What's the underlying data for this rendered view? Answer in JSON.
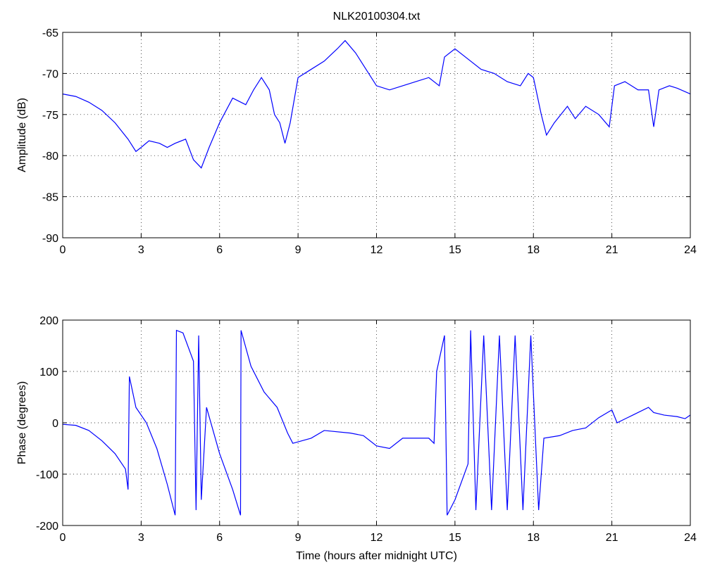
{
  "chart_data": [
    {
      "type": "line",
      "title": "NLK20100304.txt",
      "ylabel": "Amplitude (dB)",
      "color": "#0000ff",
      "grid": true,
      "xlim": [
        0,
        24
      ],
      "xticks": [
        0,
        3,
        6,
        9,
        12,
        15,
        18,
        21,
        24
      ],
      "ylim": [
        -90,
        -65
      ],
      "yticks": [
        -90,
        -85,
        -80,
        -75,
        -70,
        -65
      ],
      "x": [
        0,
        0.5,
        1,
        1.5,
        2,
        2.5,
        2.8,
        3,
        3.3,
        3.7,
        4,
        4.3,
        4.7,
        5,
        5.3,
        5.6,
        6,
        6.5,
        7,
        7.3,
        7.6,
        7.9,
        8.1,
        8.3,
        8.5,
        8.7,
        9,
        9.5,
        10,
        10.5,
        10.8,
        11.2,
        11.6,
        12,
        12.5,
        13,
        13.5,
        14,
        14.4,
        14.6,
        15,
        15.4,
        16,
        16.5,
        17,
        17.5,
        17.8,
        18,
        18.3,
        18.5,
        18.8,
        19.3,
        19.6,
        20,
        20.5,
        20.9,
        21.1,
        21.5,
        22,
        22.4,
        22.6,
        22.8,
        23.2,
        23.5,
        24
      ],
      "values": [
        -72.5,
        -72.8,
        -73.5,
        -74.5,
        -76,
        -78,
        -79.5,
        -79,
        -78.2,
        -78.5,
        -79,
        -78.5,
        -78,
        -80.5,
        -81.5,
        -79,
        -76,
        -73,
        -73.8,
        -72,
        -70.5,
        -72,
        -75,
        -76,
        -78.5,
        -76,
        -70.5,
        -69.5,
        -68.5,
        -67,
        -66,
        -67.5,
        -69.5,
        -71.5,
        -72,
        -71.5,
        -71,
        -70.5,
        -71.5,
        -68,
        -67,
        -68,
        -69.5,
        -70,
        -71,
        -71.5,
        -70,
        -70.5,
        -75,
        -77.5,
        -76,
        -74,
        -75.5,
        -74,
        -75,
        -76.5,
        -71.5,
        -71,
        -72,
        -72,
        -76.5,
        -72,
        -71.5,
        -71.8,
        -72.5
      ]
    },
    {
      "type": "line",
      "ylabel": "Phase (degrees)",
      "xlabel": "Time (hours after midnight UTC)",
      "color": "#0000ff",
      "grid": true,
      "xlim": [
        0,
        24
      ],
      "xticks": [
        0,
        3,
        6,
        9,
        12,
        15,
        18,
        21,
        24
      ],
      "ylim": [
        -200,
        200
      ],
      "yticks": [
        -200,
        -100,
        0,
        100,
        200
      ],
      "x": [
        0,
        0.5,
        1,
        1.5,
        2,
        2.4,
        2.5,
        2.55,
        2.8,
        3.2,
        3.6,
        4,
        4.3,
        4.35,
        4.6,
        5,
        5.1,
        5.2,
        5.3,
        5.5,
        6,
        6.5,
        6.8,
        6.82,
        7.2,
        7.7,
        8.2,
        8.6,
        8.8,
        9.5,
        10,
        11,
        11.5,
        12,
        12.5,
        13,
        14,
        14.2,
        14.3,
        14.6,
        14.7,
        15,
        15.5,
        15.6,
        15.8,
        16.1,
        16.4,
        16.7,
        17,
        17.3,
        17.6,
        17.9,
        18.2,
        18.4,
        19,
        19.5,
        20,
        20.5,
        21,
        21.2,
        21.8,
        22.4,
        22.6,
        23,
        23.5,
        23.8,
        24
      ],
      "values": [
        -3,
        -5,
        -15,
        -35,
        -60,
        -90,
        -130,
        90,
        30,
        0,
        -50,
        -120,
        -180,
        180,
        175,
        120,
        -170,
        170,
        -150,
        30,
        -60,
        -130,
        -180,
        180,
        110,
        60,
        30,
        -20,
        -40,
        -30,
        -15,
        -20,
        -25,
        -45,
        -50,
        -30,
        -30,
        -40,
        100,
        170,
        -180,
        -150,
        -80,
        180,
        -170,
        170,
        -170,
        170,
        -170,
        170,
        -170,
        170,
        -170,
        -30,
        -25,
        -15,
        -10,
        10,
        25,
        0,
        15,
        30,
        20,
        15,
        12,
        8,
        15
      ]
    }
  ]
}
